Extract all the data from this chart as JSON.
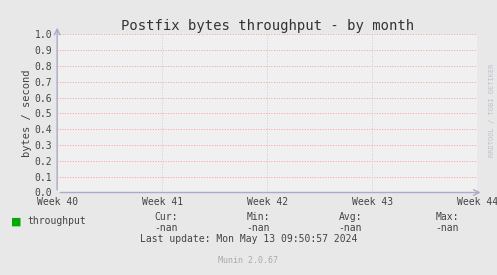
{
  "title": "Postfix bytes throughput - by month",
  "ylabel": "bytes / second",
  "x_tick_labels": [
    "Week 40",
    "Week 41",
    "Week 42",
    "Week 43",
    "Week 44"
  ],
  "ylim": [
    0.0,
    1.0
  ],
  "yticks": [
    0.0,
    0.1,
    0.2,
    0.3,
    0.4,
    0.5,
    0.6,
    0.7,
    0.8,
    0.9,
    1.0
  ],
  "bg_color": "#e8e8e8",
  "plot_bg_color": "#f0f0f0",
  "grid_color_h": "#ff9999",
  "grid_color_v": "#ccccdd",
  "title_color": "#333333",
  "axis_color": "#aaaacc",
  "tick_color": "#444444",
  "legend_label": "throughput",
  "legend_color": "#00aa00",
  "cur_label": "Cur:",
  "cur_value": "-nan",
  "min_label": "Min:",
  "min_value": "-nan",
  "avg_label": "Avg:",
  "avg_value": "-nan",
  "max_label": "Max:",
  "max_value": "-nan",
  "last_update": "Last update: Mon May 13 09:50:57 2024",
  "munin_version": "Munin 2.0.67",
  "watermark": "RRDTOOL / TOBI OETIKER",
  "title_fontsize": 10,
  "label_fontsize": 7.5,
  "tick_fontsize": 7,
  "footer_fontsize": 7,
  "munin_fontsize": 6
}
